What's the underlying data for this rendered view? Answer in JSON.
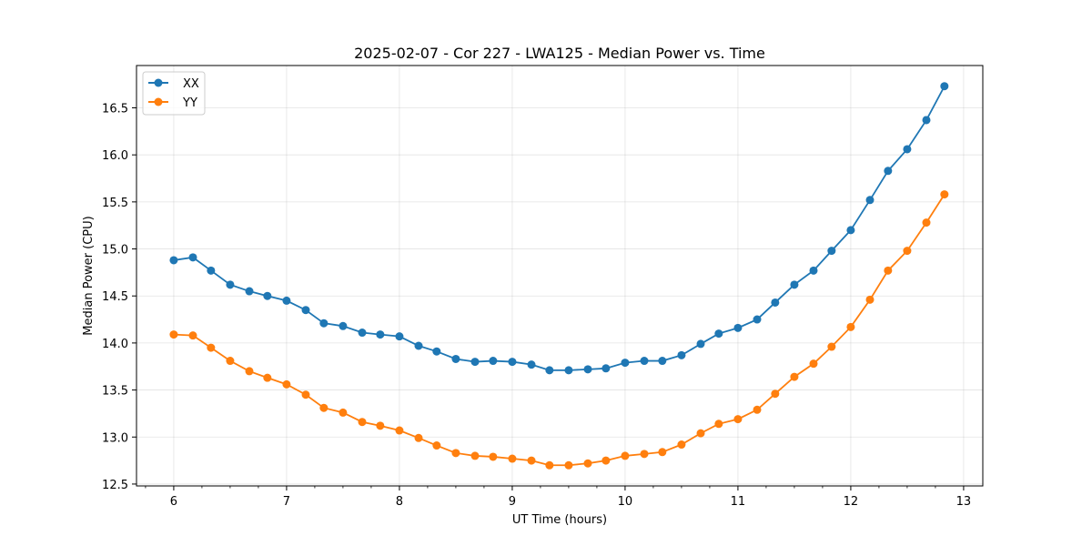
{
  "chart_data": {
    "type": "line",
    "title": "2025-02-07 - Cor 227 - LWA125 - Median Power vs. Time",
    "xlabel": "UT Time (hours)",
    "ylabel": "Median Power (CPU)",
    "xlim": [
      5.67,
      13.17
    ],
    "ylim": [
      12.48,
      16.95
    ],
    "xticks": [
      6,
      7,
      8,
      9,
      10,
      11,
      12,
      13
    ],
    "yticks": [
      12.5,
      13.0,
      13.5,
      14.0,
      14.5,
      15.0,
      15.5,
      16.0,
      16.5
    ],
    "grid": true,
    "legend_position": "top-left",
    "x": [
      6.0,
      6.17,
      6.33,
      6.5,
      6.67,
      6.83,
      7.0,
      7.17,
      7.33,
      7.5,
      7.67,
      7.83,
      8.0,
      8.17,
      8.33,
      8.5,
      8.67,
      8.83,
      9.0,
      9.17,
      9.33,
      9.5,
      9.67,
      9.83,
      10.0,
      10.17,
      10.33,
      10.5,
      10.67,
      10.83,
      11.0,
      11.17,
      11.33,
      11.5,
      11.67,
      11.83,
      12.0,
      12.17,
      12.33,
      12.5,
      12.67,
      12.83
    ],
    "series": [
      {
        "name": "XX",
        "color": "#1f77b4",
        "values": [
          14.88,
          14.91,
          14.77,
          14.62,
          14.55,
          14.5,
          14.45,
          14.35,
          14.21,
          14.18,
          14.11,
          14.09,
          14.07,
          13.97,
          13.91,
          13.83,
          13.8,
          13.81,
          13.8,
          13.77,
          13.71,
          13.71,
          13.72,
          13.73,
          13.79,
          13.81,
          13.81,
          13.87,
          13.99,
          14.1,
          14.16,
          14.25,
          14.43,
          14.62,
          14.77,
          14.98,
          15.2,
          15.52,
          15.83,
          16.06,
          16.37,
          16.73
        ]
      },
      {
        "name": "YY",
        "color": "#ff7f0e",
        "values": [
          14.09,
          14.08,
          13.95,
          13.81,
          13.7,
          13.63,
          13.56,
          13.45,
          13.31,
          13.26,
          13.16,
          13.12,
          13.07,
          12.99,
          12.91,
          12.83,
          12.8,
          12.79,
          12.77,
          12.75,
          12.7,
          12.7,
          12.72,
          12.75,
          12.8,
          12.82,
          12.84,
          12.92,
          13.04,
          13.14,
          13.19,
          13.29,
          13.46,
          13.64,
          13.78,
          13.96,
          14.17,
          14.46,
          14.77,
          14.98,
          15.28,
          15.58
        ]
      }
    ]
  }
}
